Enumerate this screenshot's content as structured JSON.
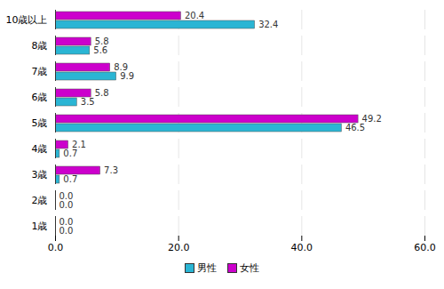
{
  "chart_data": {
    "type": "bar",
    "orientation": "horizontal",
    "categories": [
      "10歳以上",
      "8歳",
      "7歳",
      "6歳",
      "5歳",
      "4歳",
      "3歳",
      "2歳",
      "1歳"
    ],
    "series": [
      {
        "name": "男性",
        "color": "#2ab5d4",
        "values": [
          32.4,
          5.6,
          9.9,
          3.5,
          46.5,
          0.7,
          0.7,
          0,
          0
        ],
        "value_labels": [
          "32.4",
          "5.6",
          "9.9",
          "3.5",
          "46.5",
          "0.7",
          "0.7",
          "0.0",
          "0.0"
        ]
      },
      {
        "name": "女性",
        "color": "#cc00cc",
        "values": [
          20.4,
          5.8,
          8.9,
          5.8,
          49.2,
          2.1,
          7.3,
          0,
          0
        ],
        "value_labels": [
          "20.4",
          "5.8",
          "8.9",
          "5.8",
          "49.2",
          "2.1",
          "7.3",
          "0.0",
          "0.0"
        ]
      }
    ],
    "xlim": [
      0,
      60
    ],
    "xticks": [
      {
        "value": 0,
        "label": "0.0"
      },
      {
        "value": 20,
        "label": "20.0"
      },
      {
        "value": 40,
        "label": "40.0"
      },
      {
        "value": 60,
        "label": "60.0"
      }
    ],
    "grid": true,
    "data_labels": true,
    "legend": "bottom"
  }
}
